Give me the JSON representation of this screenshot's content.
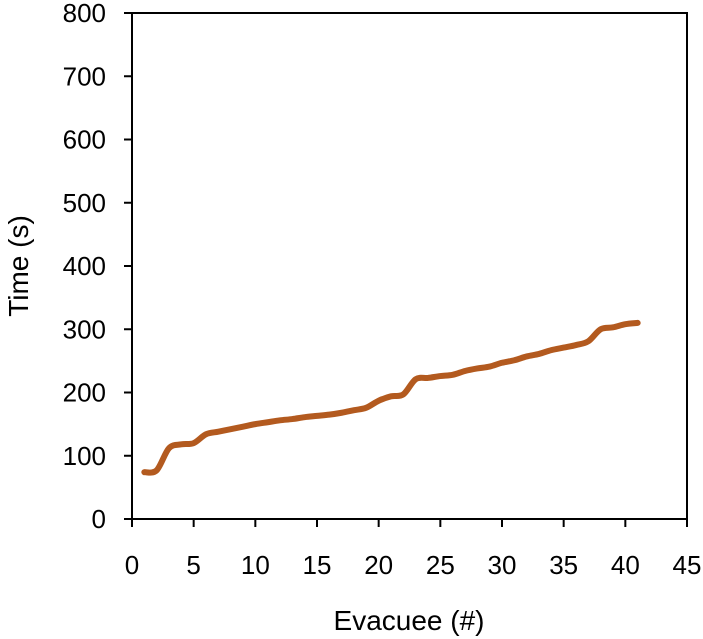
{
  "chart_data": {
    "type": "line",
    "title": "",
    "xlabel": "Evacuee (#)",
    "ylabel": "Time (s)",
    "xlim": [
      0,
      45
    ],
    "ylim": [
      0,
      800
    ],
    "xticks": [
      "0",
      "5",
      "10",
      "15",
      "20",
      "25",
      "30",
      "35",
      "40",
      "45"
    ],
    "yticks": [
      "0",
      "100",
      "200",
      "300",
      "400",
      "500",
      "600",
      "700",
      "800"
    ],
    "grid": false,
    "legend": "none",
    "line_color": "#b35a1f",
    "series": [
      {
        "x": [
          1,
          2,
          3,
          4,
          5,
          6,
          7,
          8,
          9,
          10,
          11,
          12,
          13,
          14,
          15,
          16,
          17,
          18,
          19,
          20,
          21,
          22,
          23,
          24,
          25,
          26,
          27,
          28,
          29,
          30,
          31,
          32,
          33,
          34,
          35,
          36,
          37,
          38,
          39,
          40,
          41
        ],
        "values": [
          74,
          77,
          112,
          118,
          120,
          134,
          138,
          142,
          146,
          150,
          153,
          156,
          158,
          161,
          163,
          165,
          168,
          172,
          176,
          187,
          194,
          197,
          221,
          223,
          226,
          228,
          234,
          238,
          241,
          247,
          251,
          257,
          261,
          267,
          271,
          275,
          281,
          300,
          303,
          308,
          310
        ]
      }
    ]
  }
}
